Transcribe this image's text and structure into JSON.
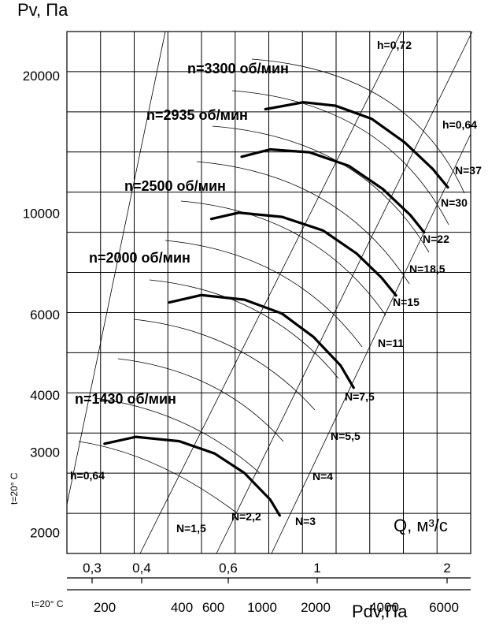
{
  "chart_data": {
    "type": "line",
    "ylabel": "Pv, Па",
    "xlabel_flow": "Q,  м³/с",
    "xlabel_dyn": "Pdv,Па",
    "temp_label_y": "t=20° C",
    "temp_label_x": "t=20° C",
    "y_scale": "log",
    "x_scale": "log",
    "ylim": [
      1800,
      25000
    ],
    "xlim": [
      0.28,
      2.25
    ],
    "grid": true,
    "y_ticks": [
      "2000",
      "3000",
      "4000",
      "6000",
      "10000",
      "20000"
    ],
    "q_ticks": [
      "0,3",
      "0,4",
      "0,6",
      "1",
      "2"
    ],
    "pdv_ticks": [
      "200",
      "400",
      "600",
      "1000",
      "2000",
      "4000",
      "6000"
    ],
    "series": [
      {
        "name": "n=1430 об/мин",
        "x": [
          0.34,
          0.4,
          0.5,
          0.6,
          0.7,
          0.8,
          0.84
        ],
        "y": [
          3130,
          3240,
          3170,
          2980,
          2700,
          2360,
          2180
        ]
      },
      {
        "name": "n=2000 об/мин",
        "x": [
          0.475,
          0.56,
          0.7,
          0.85,
          1.0,
          1.15,
          1.23
        ],
        "y": [
          6380,
          6620,
          6470,
          6030,
          5360,
          4640,
          4150
        ]
      },
      {
        "name": "n=2500 об/мин",
        "x": [
          0.59,
          0.68,
          0.85,
          1.05,
          1.25,
          1.42,
          1.53
        ],
        "y": [
          9720,
          10030,
          9820,
          9170,
          8160,
          7230,
          6610
        ]
      },
      {
        "name": "n=2935 об/мин",
        "x": [
          0.69,
          0.8,
          0.98,
          1.2,
          1.43,
          1.65,
          1.77
        ],
        "y": [
          13300,
          13800,
          13600,
          12700,
          11300,
          9900,
          9080
        ]
      },
      {
        "name": "n=3300 об/мин",
        "x": [
          0.78,
          0.95,
          1.12,
          1.35,
          1.6,
          1.85,
          2.0
        ],
        "y": [
          16900,
          17500,
          17200,
          16100,
          14300,
          12500,
          11400
        ]
      }
    ],
    "power_labels": [
      "N=1,5",
      "N=2,2",
      "N=3",
      "N=4",
      "N=5,5",
      "N=7,5",
      "N=11",
      "N=15",
      "N=18,5",
      "N=22",
      "N=30",
      "N=37"
    ],
    "efficiency_labels": [
      "h=0,64",
      "h=0,72",
      "h=0,64"
    ]
  }
}
